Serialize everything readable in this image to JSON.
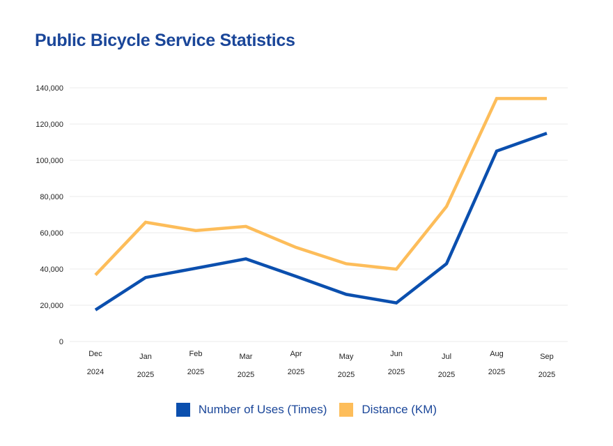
{
  "title": "Public Bicycle Service Statistics",
  "chart_data": {
    "type": "line",
    "title": "Public Bicycle Service Statistics",
    "categories": [
      [
        "Dec",
        "2024"
      ],
      [
        "Jan",
        "2025"
      ],
      [
        "Feb",
        "2025"
      ],
      [
        "Mar",
        "2025"
      ],
      [
        "Apr",
        "2025"
      ],
      [
        "May",
        "2025"
      ],
      [
        "Jun",
        "2025"
      ],
      [
        "Jul",
        "2025"
      ],
      [
        "Aug",
        "2025"
      ],
      [
        "Sep",
        "2025"
      ]
    ],
    "yticks": [
      "0",
      "20,000",
      "40,000",
      "60,000",
      "80,000",
      "100,000",
      "120,000",
      "140,000"
    ],
    "ylim": [
      0,
      140000
    ],
    "grid": true,
    "legend_position": "bottom",
    "series": [
      {
        "name": "Number of Uses (Times)",
        "color": "#0b4fae",
        "values": [
          17400,
          35300,
          40400,
          45600,
          35900,
          26000,
          21300,
          42900,
          105100,
          114900
        ]
      },
      {
        "name": "Distance (KM)",
        "color": "#fdbd5a",
        "values": [
          36700,
          65800,
          61200,
          63500,
          51900,
          42900,
          39900,
          74500,
          134100,
          134100
        ]
      }
    ]
  }
}
